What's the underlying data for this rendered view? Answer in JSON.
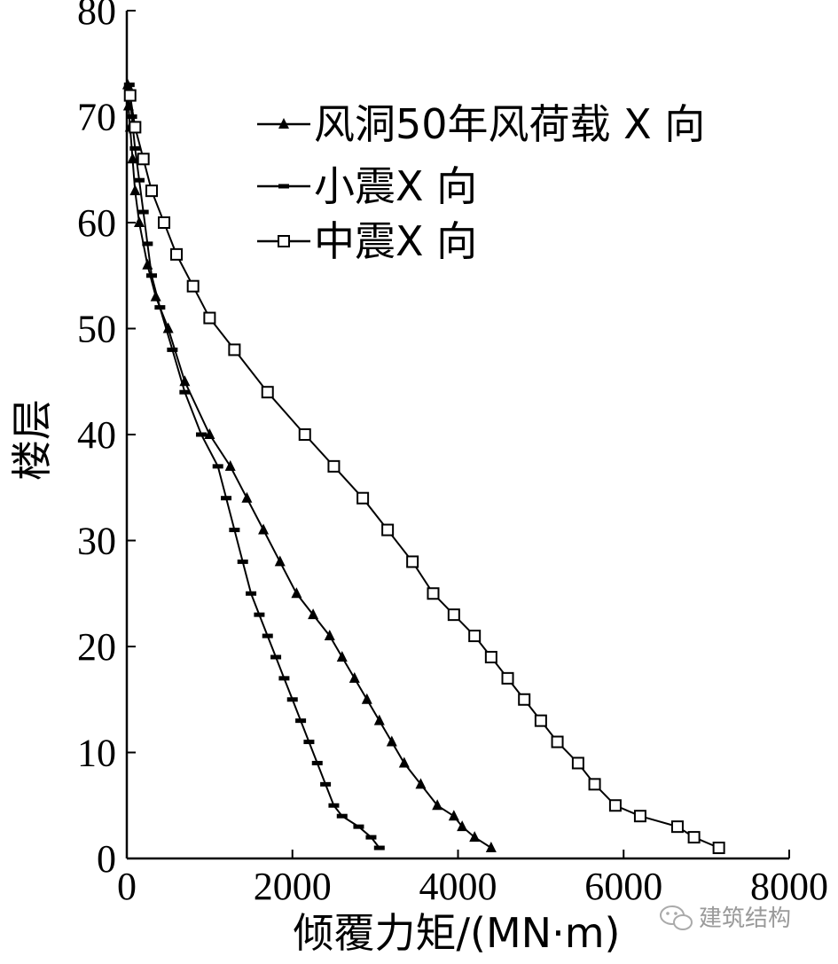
{
  "chart_data": {
    "type": "line",
    "xlabel": "倾覆力矩/(MN·m)",
    "ylabel": "楼层",
    "xlim": [
      0,
      8000
    ],
    "ylim": [
      0,
      80
    ],
    "xticks": [
      0,
      2000,
      4000,
      6000,
      8000
    ],
    "yticks": [
      0,
      10,
      20,
      30,
      40,
      50,
      60,
      70,
      80
    ],
    "grid": false,
    "legend_position": "top-right",
    "series": [
      {
        "name": "风洞50年风荷载 X 向",
        "marker": "triangle",
        "color": "#000000",
        "points": [
          [
            4400,
            1
          ],
          [
            4200,
            2
          ],
          [
            4050,
            3
          ],
          [
            3950,
            4
          ],
          [
            3750,
            5
          ],
          [
            3550,
            7
          ],
          [
            3350,
            9
          ],
          [
            3200,
            11
          ],
          [
            3050,
            13
          ],
          [
            2900,
            15
          ],
          [
            2750,
            17
          ],
          [
            2600,
            19
          ],
          [
            2450,
            21
          ],
          [
            2250,
            23
          ],
          [
            2050,
            25
          ],
          [
            1850,
            28
          ],
          [
            1650,
            31
          ],
          [
            1450,
            34
          ],
          [
            1250,
            37
          ],
          [
            1000,
            40
          ],
          [
            700,
            45
          ],
          [
            500,
            50
          ],
          [
            350,
            53
          ],
          [
            250,
            56
          ],
          [
            150,
            60
          ],
          [
            100,
            63
          ],
          [
            70,
            66
          ],
          [
            40,
            69
          ],
          [
            20,
            71
          ],
          [
            10,
            73
          ]
        ]
      },
      {
        "name": "小震X 向",
        "marker": "dash",
        "color": "#000000",
        "points": [
          [
            3050,
            1
          ],
          [
            2950,
            2
          ],
          [
            2800,
            3
          ],
          [
            2600,
            4
          ],
          [
            2500,
            5
          ],
          [
            2400,
            7
          ],
          [
            2300,
            9
          ],
          [
            2200,
            11
          ],
          [
            2100,
            13
          ],
          [
            2000,
            15
          ],
          [
            1900,
            17
          ],
          [
            1800,
            19
          ],
          [
            1700,
            21
          ],
          [
            1600,
            23
          ],
          [
            1500,
            25
          ],
          [
            1400,
            28
          ],
          [
            1300,
            31
          ],
          [
            1200,
            34
          ],
          [
            1100,
            37
          ],
          [
            900,
            40
          ],
          [
            700,
            44
          ],
          [
            550,
            48
          ],
          [
            400,
            52
          ],
          [
            300,
            55
          ],
          [
            250,
            58
          ],
          [
            200,
            61
          ],
          [
            150,
            64
          ],
          [
            100,
            67
          ],
          [
            60,
            70
          ],
          [
            30,
            73
          ]
        ]
      },
      {
        "name": "中震X 向",
        "marker": "square",
        "color": "#000000",
        "points": [
          [
            7150,
            1
          ],
          [
            6850,
            2
          ],
          [
            6650,
            3
          ],
          [
            6200,
            4
          ],
          [
            5900,
            5
          ],
          [
            5650,
            7
          ],
          [
            5450,
            9
          ],
          [
            5200,
            11
          ],
          [
            5000,
            13
          ],
          [
            4800,
            15
          ],
          [
            4600,
            17
          ],
          [
            4400,
            19
          ],
          [
            4200,
            21
          ],
          [
            3950,
            23
          ],
          [
            3700,
            25
          ],
          [
            3450,
            28
          ],
          [
            3150,
            31
          ],
          [
            2850,
            34
          ],
          [
            2500,
            37
          ],
          [
            2150,
            40
          ],
          [
            1700,
            44
          ],
          [
            1300,
            48
          ],
          [
            1000,
            51
          ],
          [
            800,
            54
          ],
          [
            600,
            57
          ],
          [
            450,
            60
          ],
          [
            300,
            63
          ],
          [
            200,
            66
          ],
          [
            100,
            69
          ],
          [
            40,
            72
          ]
        ]
      }
    ]
  },
  "watermark": {
    "text": "建筑结构",
    "icon": "wechat-icon"
  }
}
